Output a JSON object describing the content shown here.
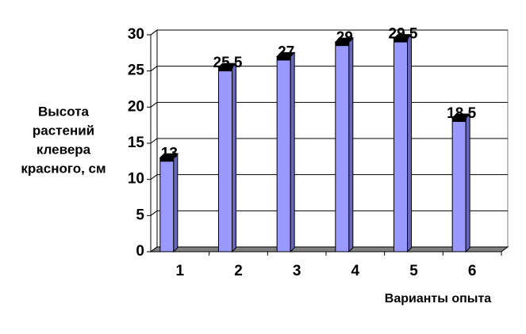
{
  "chart_data": {
    "type": "bar",
    "y_label": [
      "Высота",
      "растений",
      "клевера",
      "красного, см"
    ],
    "x_label": "Варианты опыта",
    "categories": [
      "1",
      "2",
      "3",
      "4",
      "5",
      "6"
    ],
    "values": [
      13,
      25.5,
      27,
      29,
      29.5,
      18.5
    ],
    "value_labels": [
      "13",
      "25,5",
      "27",
      "29",
      "29,5",
      "18,5"
    ],
    "color": "#9999ff",
    "ylim": [
      0,
      30
    ],
    "yticks": [
      0,
      5,
      10,
      15,
      20,
      25,
      30
    ],
    "grid": true
  }
}
